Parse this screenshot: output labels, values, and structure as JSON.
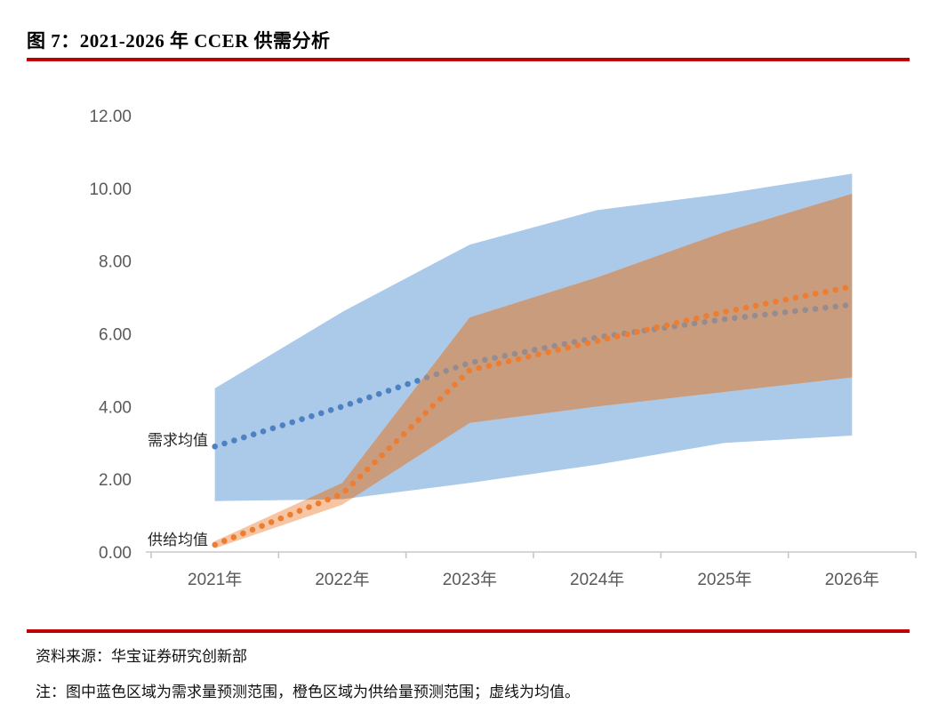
{
  "title": "图 7：2021-2026 年 CCER 供需分析",
  "source_line": "资料来源：华宝证券研究创新部",
  "note_line": "注：图中蓝色区域为需求量预测范围，橙色区域为供给量预测范围；虚线为均值。",
  "labels": {
    "demand_mean": "需求均值",
    "supply_mean": "供给均值"
  },
  "colors": {
    "accent_rule": "#C00000",
    "demand_band": "#ABC9E9",
    "supply_band": "#F6C6A4",
    "band_overlap": "#CA9C7E",
    "demand_dot": "#4D81C2",
    "demand_dot_over_supply": "#968C90",
    "supply_dot": "#ED7D31",
    "axis_text": "#595959",
    "axis_line": "#C8C8C8"
  },
  "chart_data": {
    "type": "area",
    "title": "2021-2026 年 CCER 供需分析",
    "categories": [
      "2021年",
      "2022年",
      "2023年",
      "2024年",
      "2025年",
      "2026年"
    ],
    "y_ticks": [
      "0.00",
      "2.00",
      "4.00",
      "6.00",
      "8.00",
      "10.00",
      "12.00"
    ],
    "ylim": [
      0,
      12
    ],
    "grid": false,
    "legend": "none",
    "series": [
      {
        "name": "需求量预测范围",
        "kind": "band",
        "upper": [
          4.5,
          6.6,
          8.45,
          9.4,
          9.85,
          10.4
        ],
        "lower": [
          1.4,
          1.45,
          1.9,
          2.4,
          3.0,
          3.2
        ]
      },
      {
        "name": "供给量预测范围",
        "kind": "band",
        "upper": [
          0.3,
          1.9,
          6.45,
          7.55,
          8.8,
          9.85
        ],
        "lower": [
          0.1,
          1.3,
          3.55,
          4.0,
          4.4,
          4.8
        ]
      },
      {
        "name": "需求均值",
        "kind": "dotted-line",
        "values": [
          2.9,
          4.0,
          5.2,
          5.9,
          6.4,
          6.8
        ]
      },
      {
        "name": "供给均值",
        "kind": "dotted-line",
        "values": [
          0.2,
          1.6,
          5.0,
          5.8,
          6.6,
          7.3
        ]
      }
    ]
  }
}
